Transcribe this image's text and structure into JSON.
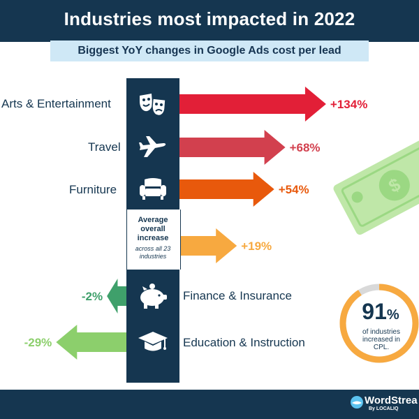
{
  "title": "Industries most impacted in 2022",
  "subtitle": {
    "prefix": "Biggest YoY changes in Google Ads ",
    "bold": "cost per lead"
  },
  "average": {
    "title": "Average\noverall\nincrease",
    "note": "across all 23 industries"
  },
  "stat": {
    "value": "91",
    "unit": "%",
    "desc": "of industries\nincreased in\nCPL."
  },
  "brand": {
    "name": "WordStrea",
    "sub": "By LOCALIQ"
  },
  "colors": {
    "navy": "#153650",
    "red": "#e21f37",
    "red2": "#d2404e",
    "orange": "#e8590c",
    "amber": "#f7a940",
    "green": "#3fa06b",
    "lightgreen": "#8ccf6c",
    "lightblue": "#cfe8f6"
  },
  "chart_data": {
    "type": "bar",
    "orientation": "horizontal",
    "title": "Industries most impacted in 2022",
    "subtitle": "Biggest YoY changes in Google Ads cost per lead",
    "categories": [
      "Arts & Entertainment",
      "Travel",
      "Furniture",
      "Average overall increase",
      "Finance & Insurance",
      "Education & Instruction"
    ],
    "values": [
      134,
      68,
      54,
      19,
      -2,
      -29
    ],
    "labels": [
      "+134%",
      "+68%",
      "+54%",
      "+19%",
      "-2%",
      "-29%"
    ],
    "icons": [
      "theater-masks-icon",
      "airplane-icon",
      "armchair-icon",
      "",
      "piggy-bank-icon",
      "graduation-cap-icon"
    ],
    "bar_colors": [
      "#e21f37",
      "#d2404e",
      "#e8590c",
      "#f7a940",
      "#3fa06b",
      "#8ccf6c"
    ],
    "value_unit": "%"
  }
}
